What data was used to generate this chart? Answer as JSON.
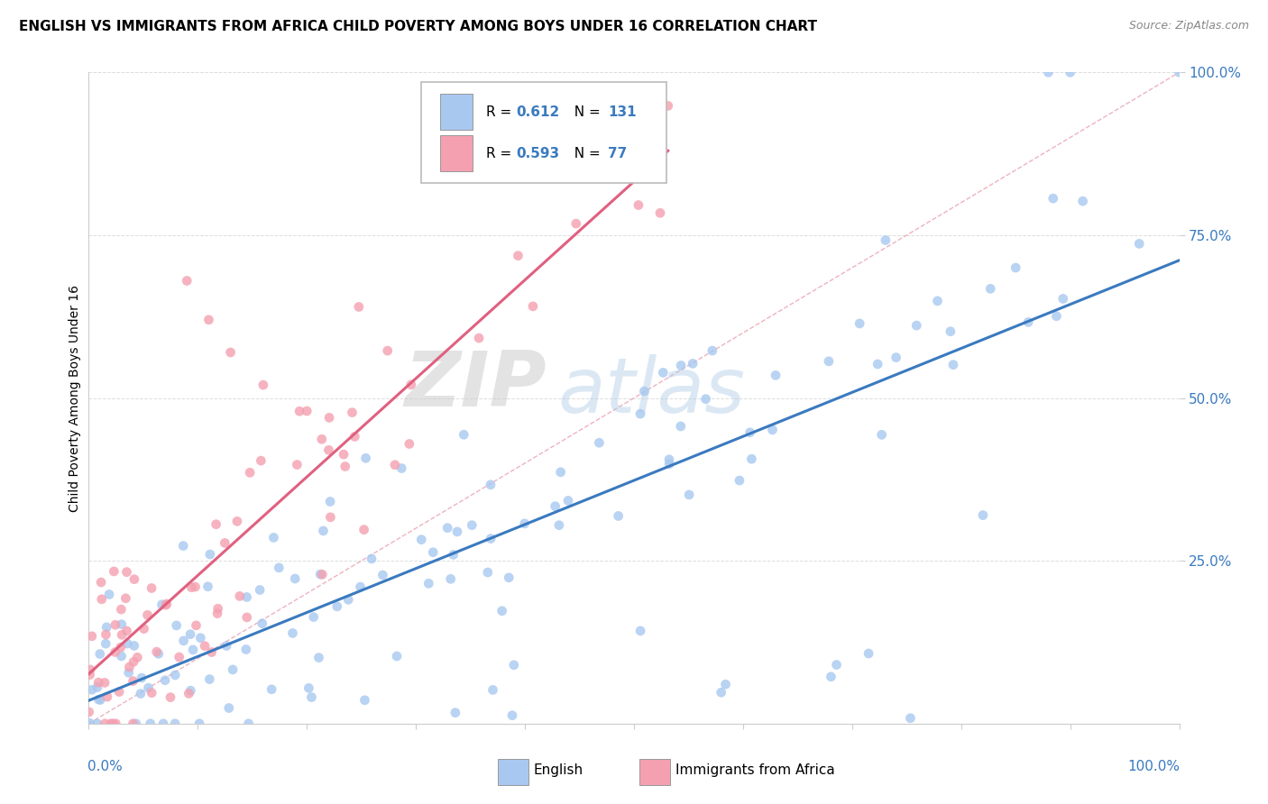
{
  "title": "ENGLISH VS IMMIGRANTS FROM AFRICA CHILD POVERTY AMONG BOYS UNDER 16 CORRELATION CHART",
  "source": "Source: ZipAtlas.com",
  "ylabel": "Child Poverty Among Boys Under 16",
  "legend_english": "English",
  "legend_africa": "Immigrants from Africa",
  "R_english": 0.612,
  "N_english": 131,
  "R_africa": 0.593,
  "N_africa": 77,
  "english_color": "#a8c8f0",
  "africa_color": "#f4a0b0",
  "english_line_color": "#3a7abf",
  "africa_line_color": "#e06080",
  "diagonal_color": "#e8a0b0",
  "watermark_zip": "ZIP",
  "watermark_atlas": "atlas",
  "title_fontsize": 11,
  "axis_label_color": "#3a7abf",
  "tick_fontsize": 11
}
